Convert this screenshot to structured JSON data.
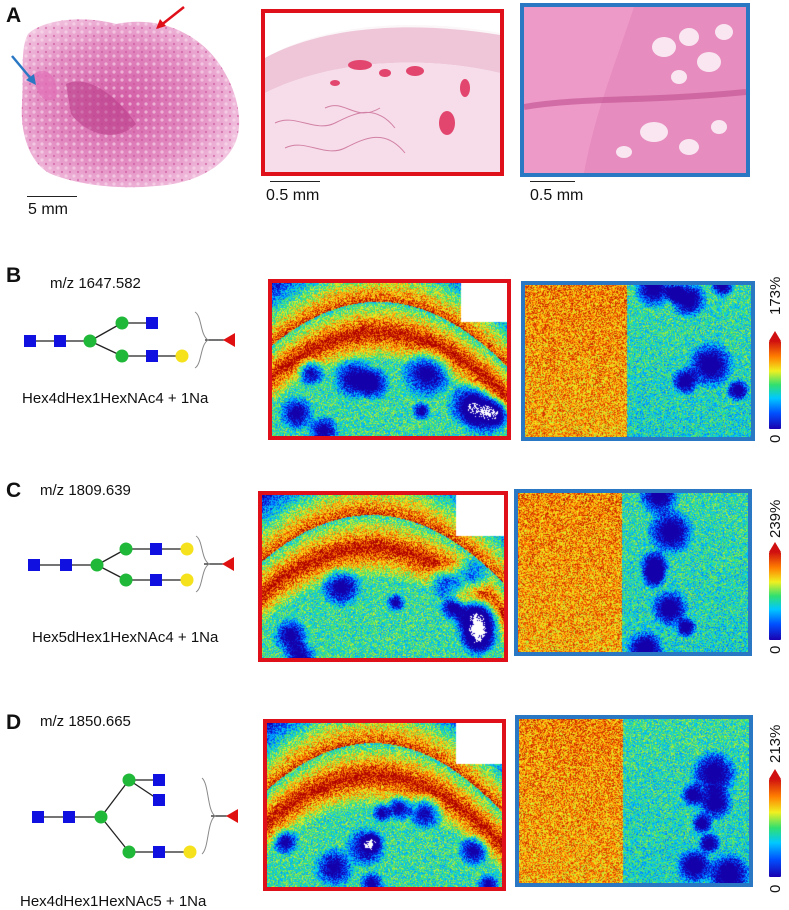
{
  "panelA": {
    "letter": "A",
    "scalebars": [
      "5 mm",
      "0.5 mm",
      "0.5 mm"
    ]
  },
  "rows": [
    {
      "letter": "B",
      "mz": "m/z 1647.582",
      "composition": "Hex4dHex1HexNAc4 + 1Na",
      "cb_max": "173%",
      "cb_min": "0"
    },
    {
      "letter": "C",
      "mz": "m/z 1809.639",
      "composition": "Hex5dHex1HexNAc4 + 1Na",
      "cb_max": "239%",
      "cb_min": "0"
    },
    {
      "letter": "D",
      "mz": "m/z 1850.665",
      "composition": "Hex4dHex1HexNAc5 + 1Na",
      "cb_max": "213%",
      "cb_min": "0"
    }
  ],
  "colors": {
    "red_frame": "#e0101a",
    "blue_frame": "#2a78c4",
    "gal": "#f5e21c",
    "man": "#20b838",
    "glcnac": "#1010e0",
    "fuc": "#e01010"
  }
}
